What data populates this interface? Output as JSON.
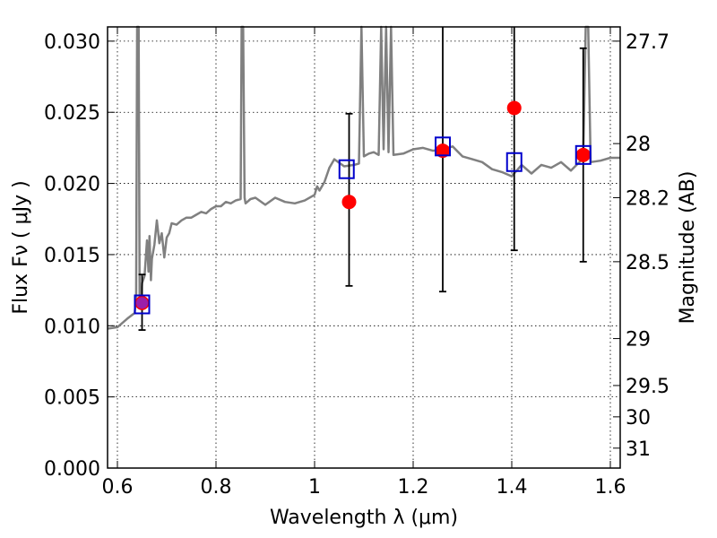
{
  "chart_data": {
    "type": "scatter",
    "xlabel": "Wavelength  λ (μm)",
    "ylabel": "Flux  Fν  ( μJy )",
    "ylabel_right": "Magnitude (AB)",
    "xlim": [
      0.58,
      1.62
    ],
    "ylim": [
      0.0,
      0.031
    ],
    "grid": true,
    "x_ticks": [
      {
        "value": 0.6,
        "label": "0.6"
      },
      {
        "value": 0.8,
        "label": "0.8"
      },
      {
        "value": 1.0,
        "label": "1"
      },
      {
        "value": 1.2,
        "label": "1.2"
      },
      {
        "value": 1.4,
        "label": "1.4"
      },
      {
        "value": 1.6,
        "label": "1.6"
      }
    ],
    "y_ticks": [
      {
        "value": 0.0,
        "label": "0.000"
      },
      {
        "value": 0.005,
        "label": "0.005"
      },
      {
        "value": 0.01,
        "label": "0.010"
      },
      {
        "value": 0.015,
        "label": "0.015"
      },
      {
        "value": 0.02,
        "label": "0.020"
      },
      {
        "value": 0.025,
        "label": "0.025"
      },
      {
        "value": 0.03,
        "label": "0.030"
      }
    ],
    "right_ticks": [
      {
        "flux": 0.03,
        "label": "27.7"
      },
      {
        "flux": 0.0228,
        "label": "28"
      },
      {
        "flux": 0.019,
        "label": "28.2"
      },
      {
        "flux": 0.0145,
        "label": "28.5"
      },
      {
        "flux": 0.0091,
        "label": "29"
      },
      {
        "flux": 0.0058,
        "label": "29.5"
      },
      {
        "flux": 0.0036,
        "label": "30"
      },
      {
        "flux": 0.0014,
        "label": "31"
      }
    ],
    "colors": {
      "model": "#808080",
      "observed": "#ff0000",
      "synthetic": "#0000cc",
      "errorbar": "#000000",
      "grid": "#000000"
    },
    "series": [
      {
        "kind": "model-spectrum",
        "x": [
          0.58,
          0.6,
          0.62,
          0.635,
          0.638,
          0.64,
          0.643,
          0.645,
          0.648,
          0.65,
          0.655,
          0.66,
          0.663,
          0.665,
          0.668,
          0.67,
          0.675,
          0.68,
          0.685,
          0.69,
          0.695,
          0.7,
          0.705,
          0.71,
          0.72,
          0.73,
          0.74,
          0.75,
          0.76,
          0.77,
          0.78,
          0.79,
          0.8,
          0.81,
          0.82,
          0.83,
          0.84,
          0.85,
          0.852,
          0.855,
          0.858,
          0.86,
          0.87,
          0.88,
          0.9,
          0.92,
          0.94,
          0.96,
          0.98,
          1.0,
          1.005,
          1.01,
          1.02,
          1.03,
          1.04,
          1.06,
          1.08,
          1.09,
          1.095,
          1.1,
          1.11,
          1.12,
          1.13,
          1.135,
          1.14,
          1.145,
          1.15,
          1.155,
          1.16,
          1.18,
          1.2,
          1.22,
          1.24,
          1.26,
          1.28,
          1.3,
          1.32,
          1.34,
          1.36,
          1.38,
          1.4,
          1.42,
          1.44,
          1.46,
          1.48,
          1.5,
          1.52,
          1.54,
          1.545,
          1.55,
          1.555,
          1.56,
          1.58,
          1.6,
          1.62
        ],
        "y": [
          0.0098,
          0.0099,
          0.0105,
          0.0109,
          0.012,
          0.031,
          0.031,
          0.012,
          0.0118,
          0.013,
          0.0135,
          0.016,
          0.0138,
          0.0163,
          0.0132,
          0.0147,
          0.0157,
          0.0174,
          0.0158,
          0.0165,
          0.0148,
          0.0162,
          0.0165,
          0.0172,
          0.0171,
          0.0174,
          0.0176,
          0.0176,
          0.0178,
          0.018,
          0.0179,
          0.0182,
          0.0184,
          0.0184,
          0.0187,
          0.0186,
          0.0188,
          0.0189,
          0.031,
          0.031,
          0.019,
          0.0186,
          0.0189,
          0.019,
          0.0185,
          0.019,
          0.0187,
          0.0186,
          0.0188,
          0.0192,
          0.0198,
          0.0195,
          0.0201,
          0.0211,
          0.0217,
          0.0212,
          0.0213,
          0.0214,
          0.031,
          0.0219,
          0.0221,
          0.0222,
          0.022,
          0.031,
          0.0224,
          0.031,
          0.0222,
          0.031,
          0.022,
          0.0221,
          0.0224,
          0.0225,
          0.0223,
          0.0224,
          0.0226,
          0.0219,
          0.0217,
          0.0215,
          0.021,
          0.0208,
          0.0205,
          0.0213,
          0.0207,
          0.0213,
          0.0211,
          0.0215,
          0.0209,
          0.0216,
          0.022,
          0.031,
          0.031,
          0.0215,
          0.0216,
          0.0218,
          0.0218
        ]
      },
      {
        "kind": "synthetic-photometry",
        "x": [
          0.65,
          1.065,
          1.26,
          1.405,
          1.545
        ],
        "y": [
          0.0115,
          0.021,
          0.0226,
          0.0215,
          0.022
        ]
      },
      {
        "kind": "observed-photometry",
        "x": [
          0.65,
          1.07,
          1.26,
          1.405,
          1.545
        ],
        "y": [
          0.0116,
          0.0187,
          0.0223,
          0.0253,
          0.022
        ],
        "err_low": [
          0.0097,
          0.0128,
          0.0124,
          0.0153,
          0.0145
        ],
        "err_high": [
          0.0136,
          0.0249,
          0.031,
          0.031,
          0.0295
        ]
      }
    ]
  }
}
